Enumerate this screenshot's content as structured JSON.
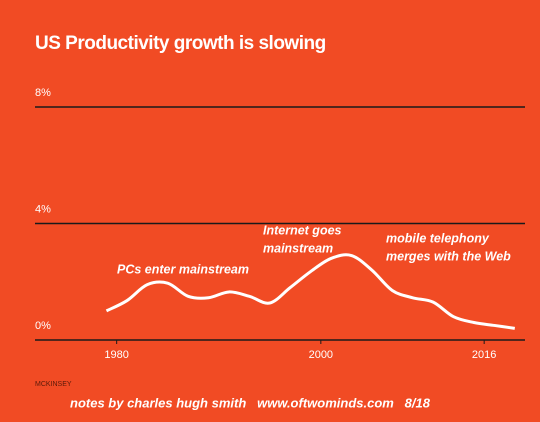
{
  "chart_data": {
    "type": "line",
    "title": "US Productivity growth is slowing",
    "x": [
      1979,
      1981,
      1983,
      1985,
      1987,
      1989,
      1991,
      1993,
      1995,
      1997,
      1999,
      2001,
      2003,
      2005,
      2007,
      2009,
      2011,
      2013,
      2015,
      2017,
      2019
    ],
    "series": [
      {
        "name": "US productivity growth",
        "color": "#ffffff",
        "values": [
          1.0,
          1.35,
          1.9,
          1.95,
          1.5,
          1.45,
          1.65,
          1.5,
          1.27,
          1.8,
          2.35,
          2.8,
          2.9,
          2.4,
          1.7,
          1.45,
          1.3,
          0.8,
          0.6,
          0.5,
          0.4
        ]
      }
    ],
    "xlim": [
      1972,
      2020
    ],
    "xticks": [
      1980,
      2000,
      2016
    ],
    "ylim": [
      0,
      8
    ],
    "yticks": [
      {
        "value": 0,
        "label": "0%"
      },
      {
        "value": 4,
        "label": "4%"
      },
      {
        "value": 8,
        "label": "8%"
      }
    ],
    "grid": true,
    "annotations": [
      "PCs enter mainstream",
      "Internet goes",
      "mainstream",
      "mobile telephony",
      "merges with the Web"
    ],
    "source": "MCKINSEY",
    "footer": "notes by charles hugh smith   www.oftwominds.com   8/18"
  }
}
